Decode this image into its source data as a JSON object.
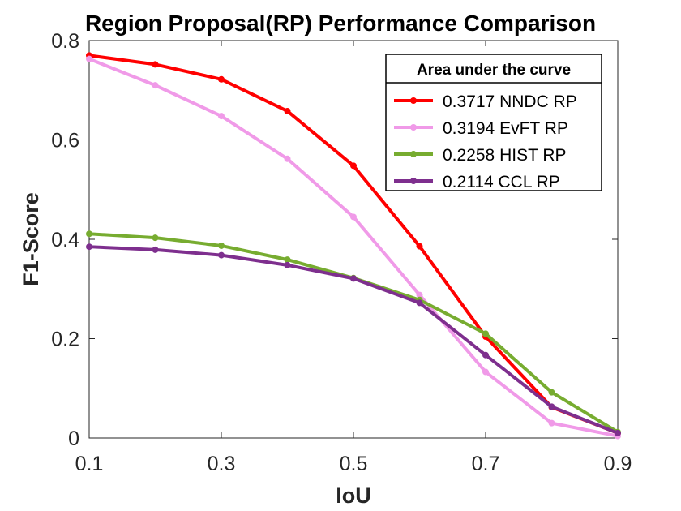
{
  "chart_data": {
    "type": "line",
    "title": "Region Proposal(RP) Performance Comparison",
    "xlabel": "IoU",
    "ylabel": "F1-Score",
    "xlim": [
      0.1,
      0.9
    ],
    "ylim": [
      0,
      0.8
    ],
    "xticks": [
      0.1,
      0.3,
      0.5,
      0.7,
      0.9
    ],
    "xtick_labels": [
      "0.1",
      "0.3",
      "0.5",
      "0.7",
      "0.9"
    ],
    "yticks": [
      0,
      0.2,
      0.4,
      0.6,
      0.8
    ],
    "ytick_labels": [
      "0",
      "0.2",
      "0.4",
      "0.6",
      "0.8"
    ],
    "x": [
      0.1,
      0.2,
      0.3,
      0.4,
      0.5,
      0.6,
      0.7,
      0.8,
      0.9
    ],
    "legend_title": "Area under the curve",
    "legend_position": "top-right",
    "grid": false,
    "series": [
      {
        "name": "0.3717 NNDC RP",
        "color": "#ff0000",
        "values": [
          0.77,
          0.752,
          0.722,
          0.658,
          0.548,
          0.386,
          0.204,
          0.062,
          0.01
        ]
      },
      {
        "name": "0.3194 EvFT RP",
        "color": "#f09ae8",
        "values": [
          0.763,
          0.71,
          0.648,
          0.562,
          0.445,
          0.288,
          0.133,
          0.03,
          0.004
        ]
      },
      {
        "name": "0.2258 HIST RP",
        "color": "#77ac30",
        "values": [
          0.411,
          0.403,
          0.387,
          0.359,
          0.322,
          0.278,
          0.21,
          0.092,
          0.012
        ]
      },
      {
        "name": "0.2114 CCL RP",
        "color": "#7e2f8e",
        "values": [
          0.385,
          0.379,
          0.368,
          0.348,
          0.321,
          0.272,
          0.167,
          0.063,
          0.01
        ]
      }
    ]
  }
}
